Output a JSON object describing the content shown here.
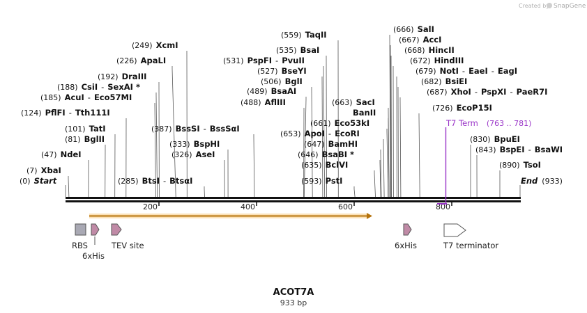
{
  "credit": {
    "text": "Created by",
    "brand": "SnapGene",
    "icon": "snapgene-logo-icon"
  },
  "plasmid": {
    "name": "ACOT7A",
    "size_label": "933 bp",
    "length": 933
  },
  "ruler": {
    "ticks": [
      200,
      400,
      600,
      800
    ]
  },
  "sites": [
    {
      "pos": "(0)",
      "site": 0,
      "names": [
        "Start"
      ],
      "special": "italic"
    },
    {
      "pos": "(7)",
      "site": 7,
      "names": [
        "XbaI"
      ]
    },
    {
      "pos": "(47)",
      "site": 47,
      "names": [
        "NdeI"
      ]
    },
    {
      "pos": "(81)",
      "site": 81,
      "names": [
        "BglII"
      ]
    },
    {
      "pos": "(101)",
      "site": 101,
      "names": [
        "TatI"
      ]
    },
    {
      "pos": "(124)",
      "site": 124,
      "names": [
        "PflFI",
        "Tth111I"
      ]
    },
    {
      "pos": "(185)",
      "site": 185,
      "names": [
        "AcuI",
        "Eco57MI"
      ]
    },
    {
      "pos": "(188)",
      "site": 188,
      "names": [
        "CsiI",
        "SexAI *"
      ]
    },
    {
      "pos": "(192)",
      "site": 192,
      "names": [
        "DraIII"
      ]
    },
    {
      "pos": "(226)",
      "site": 226,
      "names": [
        "ApaLI"
      ]
    },
    {
      "pos": "(249)",
      "site": 249,
      "names": [
        "XcmI"
      ]
    },
    {
      "pos": "(285)",
      "site": 285,
      "names": [
        "BtsI",
        "BtsαI"
      ]
    },
    {
      "pos": "(387)",
      "site": 387,
      "names": [
        "BssSI",
        "BssSαI"
      ]
    },
    {
      "pos": "(333)",
      "site": 333,
      "names": [
        "BspHI"
      ]
    },
    {
      "pos": "(326)",
      "site": 326,
      "names": [
        "AseI"
      ]
    },
    {
      "pos": "(531)",
      "site": 531,
      "names": [
        "PspFI",
        "PvuII"
      ]
    },
    {
      "pos": "(559)",
      "site": 559,
      "names": [
        "TaqII"
      ]
    },
    {
      "pos": "(535)",
      "site": 535,
      "names": [
        "BsaI"
      ]
    },
    {
      "pos": "(527)",
      "site": 527,
      "names": [
        "BseYI"
      ]
    },
    {
      "pos": "(506)",
      "site": 506,
      "names": [
        "BglI"
      ]
    },
    {
      "pos": "(489)",
      "site": 489,
      "names": [
        "BsaAI"
      ]
    },
    {
      "pos": "(488)",
      "site": 488,
      "names": [
        "AflIII"
      ]
    },
    {
      "pos": "(663)",
      "site": 663,
      "names": [
        "SacI"
      ]
    },
    {
      "pos": "",
      "site": 663,
      "names": [
        "BanII"
      ]
    },
    {
      "pos": "(661)",
      "site": 661,
      "names": [
        "Eco53kI"
      ]
    },
    {
      "pos": "(653)",
      "site": 653,
      "names": [
        "ApoI",
        "EcoRI"
      ]
    },
    {
      "pos": "(647)",
      "site": 647,
      "names": [
        "BamHI"
      ]
    },
    {
      "pos": "(646)",
      "site": 646,
      "names": [
        "BsaBI *"
      ]
    },
    {
      "pos": "(635)",
      "site": 635,
      "names": [
        "BclVI"
      ]
    },
    {
      "pos": "(593)",
      "site": 593,
      "names": [
        "PstI"
      ]
    },
    {
      "pos": "(666)",
      "site": 666,
      "names": [
        "SalI"
      ]
    },
    {
      "pos": "(667)",
      "site": 667,
      "names": [
        "AccI"
      ]
    },
    {
      "pos": "(668)",
      "site": 668,
      "names": [
        "HincII"
      ]
    },
    {
      "pos": "(672)",
      "site": 672,
      "names": [
        "HindIII"
      ]
    },
    {
      "pos": "(679)",
      "site": 679,
      "names": [
        "NotI",
        "EaeI",
        "EagI"
      ]
    },
    {
      "pos": "(682)",
      "site": 682,
      "names": [
        "BsiEI"
      ]
    },
    {
      "pos": "(687)",
      "site": 687,
      "names": [
        "XhoI",
        "PspXI",
        "PaeR7I"
      ]
    },
    {
      "pos": "(726)",
      "site": 726,
      "names": [
        "EcoP15I"
      ]
    },
    {
      "pos": "(763 .. 781)",
      "site": 763,
      "names": [
        "T7 Term"
      ],
      "special": "primer"
    },
    {
      "pos": "(830)",
      "site": 830,
      "names": [
        "BpuEI"
      ]
    },
    {
      "pos": "(843)",
      "site": 843,
      "names": [
        "BspEI",
        "BsaWI"
      ]
    },
    {
      "pos": "(890)",
      "site": 890,
      "names": [
        "TsoI"
      ]
    },
    {
      "pos": "(933)",
      "site": 933,
      "names": [
        "End"
      ],
      "special": "italic"
    }
  ],
  "features": [
    {
      "name": "RBS",
      "type": "box",
      "color": "#a9a9b4"
    },
    {
      "name": "6xHis",
      "type": "arrow",
      "color": "#c08aa6"
    },
    {
      "name": "TEV site",
      "type": "arrow",
      "color": "#c08aa6"
    },
    {
      "name": "6xHis",
      "type": "arrow",
      "color": "#c08aa6"
    },
    {
      "name": "T7 terminator",
      "type": "arrow-outline",
      "color": "#ffffff"
    }
  ],
  "colors": {
    "primer": "#9a35c8",
    "orf": "#f0a020",
    "backbone": "#111111"
  }
}
